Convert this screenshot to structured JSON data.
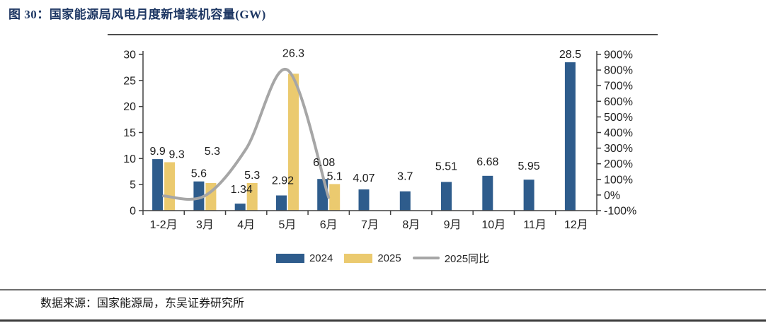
{
  "figure": {
    "title": "图 30：国家能源局风电月度新增装机容量(GW)",
    "source": "数据来源：国家能源局，东吴证券研究所"
  },
  "colors": {
    "title_navy": "#1F3864",
    "bar_2024_blue": "#2E5C8C",
    "bar_2025_yellow": "#EBCA6F",
    "yoy_line_gray": "#A6A6A6",
    "axis": "#404040",
    "label_text": "#1A1A1A"
  },
  "chart_data": {
    "type": "bar",
    "subtype": "grouped bars with YoY line on secondary axis",
    "title": "国家能源局风电月度新增装机容量(GW)",
    "categories": [
      "1-2月",
      "3月",
      "4月",
      "5月",
      "6月",
      "7月",
      "8月",
      "9月",
      "10月",
      "11月",
      "12月"
    ],
    "series": [
      {
        "name": "2024",
        "kind": "bar",
        "axis": "left",
        "color": "#2E5C8C",
        "values": [
          9.9,
          5.6,
          1.34,
          2.92,
          6.08,
          4.07,
          3.7,
          5.51,
          6.68,
          5.95,
          28.5
        ]
      },
      {
        "name": "2025",
        "kind": "bar",
        "axis": "left",
        "color": "#EBCA6F",
        "values": [
          9.3,
          5.3,
          5.3,
          26.3,
          5.1,
          null,
          null,
          null,
          null,
          null,
          null
        ]
      },
      {
        "name": "2025同比",
        "kind": "line",
        "axis": "right",
        "color": "#A6A6A6",
        "unit": "%",
        "values_estimated": true,
        "values": [
          -6,
          -5,
          296,
          801,
          -16,
          null,
          null,
          null,
          null,
          null,
          null
        ]
      }
    ],
    "left_axis": {
      "min": 0,
      "max": 30,
      "step": 5,
      "ticks": [
        "0",
        "5",
        "10",
        "15",
        "20",
        "25",
        "30"
      ]
    },
    "right_axis": {
      "min": -100,
      "max": 900,
      "step": 100,
      "suffix": "%",
      "ticks": [
        "-100%",
        "0%",
        "100%",
        "200%",
        "300%",
        "400%",
        "500%",
        "600%",
        "700%",
        "800%",
        "900%"
      ]
    },
    "legend": {
      "position": "bottom",
      "entries": [
        "2024",
        "2025",
        "2025同比"
      ]
    },
    "grid": false,
    "bar_labels": true,
    "label_offsets": {
      "s1c0": {
        "dx": 10,
        "dy": 0
      },
      "s1c1": {
        "dx": 2,
        "dy": -34
      },
      "s1c3": {
        "dx": 0,
        "dy": -18
      },
      "s0c2": {
        "dx": 2,
        "dy": -9
      },
      "s0c3": {
        "dx": 2,
        "dy": -10
      },
      "s0c4": {
        "dx": 2,
        "dy": -12
      },
      "s0c5": {
        "dx": 0,
        "dy": -5
      },
      "s0c6": {
        "dx": 0,
        "dy": -10
      },
      "s0c7": {
        "dx": 0,
        "dy": -11
      },
      "s0c8": {
        "dx": 0,
        "dy": -9
      },
      "s0c9": {
        "dx": 0,
        "dy": -8
      }
    }
  }
}
